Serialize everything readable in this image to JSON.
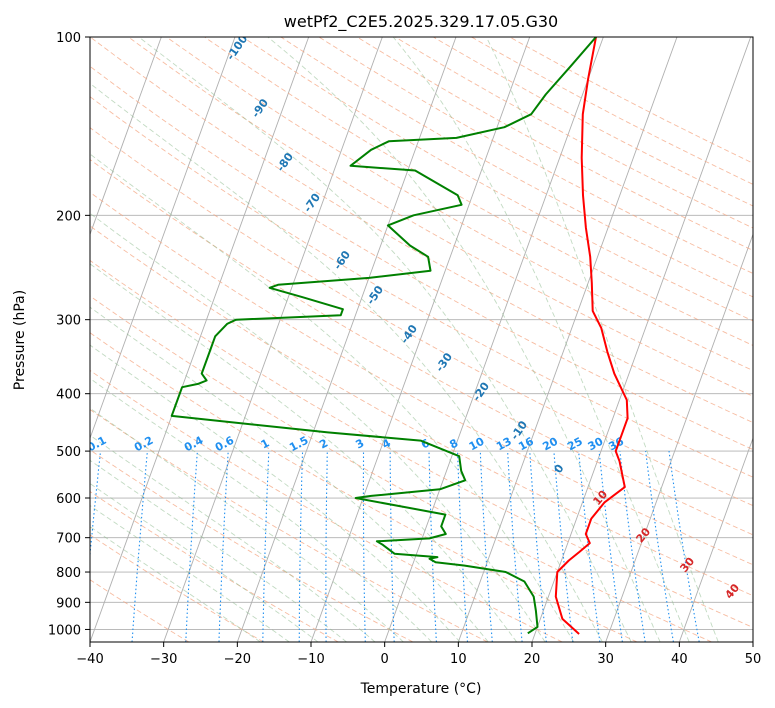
{
  "chart_data": {
    "type": "line",
    "title": "wetPf2_C2E5.2025.329.17.05.G30",
    "xlabel": "Temperature (°C)",
    "ylabel": "Pressure (hPa)",
    "xlim": [
      -40,
      50
    ],
    "ylim": [
      1050,
      100
    ],
    "y_scale": "log",
    "grid": true,
    "x_ticks": [
      "−40",
      "−30",
      "−20",
      "−10",
      "0",
      "10",
      "20",
      "30",
      "40",
      "50"
    ],
    "x_tick_values": [
      -40,
      -30,
      -20,
      -10,
      0,
      10,
      20,
      30,
      40,
      50
    ],
    "y_ticks": [
      "100",
      "200",
      "300",
      "400",
      "500",
      "600",
      "700",
      "800",
      "900",
      "1000"
    ],
    "y_tick_values": [
      100,
      200,
      300,
      400,
      500,
      600,
      700,
      800,
      900,
      1000
    ],
    "series": [
      {
        "role": "temperature",
        "color": "#ff0000",
        "points": [
          [
            26,
            1018
          ],
          [
            23,
            960
          ],
          [
            21,
            880
          ],
          [
            20,
            800
          ],
          [
            21,
            765
          ],
          [
            22,
            740
          ],
          [
            23,
            715
          ],
          [
            22,
            690
          ],
          [
            22,
            650
          ],
          [
            23,
            610
          ],
          [
            25,
            575
          ],
          [
            23,
            520
          ],
          [
            22,
            500
          ],
          [
            22,
            470
          ],
          [
            22,
            440
          ],
          [
            21,
            410
          ],
          [
            18,
            370
          ],
          [
            16,
            340
          ],
          [
            14,
            310
          ],
          [
            12,
            290
          ],
          [
            10.5,
            260
          ],
          [
            9,
            235
          ],
          [
            7,
            210
          ],
          [
            5,
            185
          ],
          [
            3,
            160
          ],
          [
            1,
            135
          ],
          [
            0,
            118
          ],
          [
            -1,
            100
          ]
        ]
      },
      {
        "role": "dewpoint",
        "color": "#008000",
        "points": [
          [
            19,
            1015
          ],
          [
            20,
            990
          ],
          [
            19,
            930
          ],
          [
            18,
            880
          ],
          [
            16,
            830
          ],
          [
            13,
            800
          ],
          [
            7,
            780
          ],
          [
            3,
            770
          ],
          [
            2,
            760
          ],
          [
            3,
            755
          ],
          [
            -3,
            745
          ],
          [
            -5,
            720
          ],
          [
            -6,
            710
          ],
          [
            1,
            702
          ],
          [
            3,
            690
          ],
          [
            2,
            670
          ],
          [
            2,
            640
          ],
          [
            -11,
            600
          ],
          [
            -9,
            595
          ],
          [
            0,
            580
          ],
          [
            3,
            560
          ],
          [
            2,
            540
          ],
          [
            1,
            510
          ],
          [
            -5,
            480
          ],
          [
            -18,
            465
          ],
          [
            -40,
            436
          ],
          [
            -40,
            390
          ],
          [
            -38,
            385
          ],
          [
            -37,
            380
          ],
          [
            -38,
            370
          ],
          [
            -38,
            340
          ],
          [
            -38,
            320
          ],
          [
            -37,
            305
          ],
          [
            -36,
            300
          ],
          [
            -22,
            295
          ],
          [
            -22,
            288
          ],
          [
            -28,
            275
          ],
          [
            -33,
            265
          ],
          [
            -32,
            262
          ],
          [
            -20,
            255
          ],
          [
            -12,
            248
          ],
          [
            -13,
            235
          ],
          [
            -16,
            225
          ],
          [
            -20,
            208
          ],
          [
            -17,
            200
          ],
          [
            -11,
            192
          ],
          [
            -12,
            185
          ],
          [
            -19,
            168
          ],
          [
            -28,
            165
          ],
          [
            -26,
            155
          ],
          [
            -24,
            150
          ],
          [
            -15,
            148
          ],
          [
            -9,
            142
          ],
          [
            -6,
            135
          ],
          [
            -5,
            125
          ],
          [
            -3,
            112
          ],
          [
            -1,
            100
          ]
        ]
      }
    ],
    "mixing_ratio_labels": [
      "0.1",
      "0.2",
      "0.4",
      "0.6",
      "1",
      "1.5",
      "2",
      "3",
      "4",
      "6",
      "8",
      "10",
      "13",
      "16",
      "20",
      "25",
      "30",
      "36"
    ],
    "mixing_ratio_values": [
      0.1,
      0.2,
      0.4,
      0.6,
      1,
      1.5,
      2,
      3,
      4,
      6,
      8,
      10,
      13,
      16,
      20,
      25,
      30,
      36
    ],
    "moist_adiabat_labels": [
      "-100",
      "-90",
      "-80",
      "-70",
      "-60",
      "-50",
      "-40",
      "-30",
      "-20",
      "-10",
      "0"
    ],
    "moist_adiabat_values": [
      -100,
      -90,
      -80,
      -70,
      -60,
      -50,
      -40,
      -30,
      -20,
      -10,
      0
    ],
    "moist_adiabat_label_pressures": [
      105,
      133,
      164,
      192,
      240,
      275,
      320,
      357,
      400,
      465,
      540
    ],
    "dry_adiabat_labels": [
      "10",
      "20",
      "30",
      "40"
    ],
    "dry_adiabat_values": [
      10,
      20,
      30,
      40
    ],
    "dry_adiabat_label_pressures": [
      605,
      700,
      785,
      870
    ],
    "colors": {
      "temperature": "#ff0000",
      "dewpoint": "#008000",
      "isotherm": "#b0b0b0",
      "isobar": "#b0b0b0",
      "dry_adiabat": "#f4a582",
      "moist_adiabat": "#8fbc8f",
      "mixing_ratio": "#1f8ff0",
      "moist_label": "#1f77b4",
      "dry_label": "#d62728",
      "mix_label": "#1f8ff0"
    }
  }
}
